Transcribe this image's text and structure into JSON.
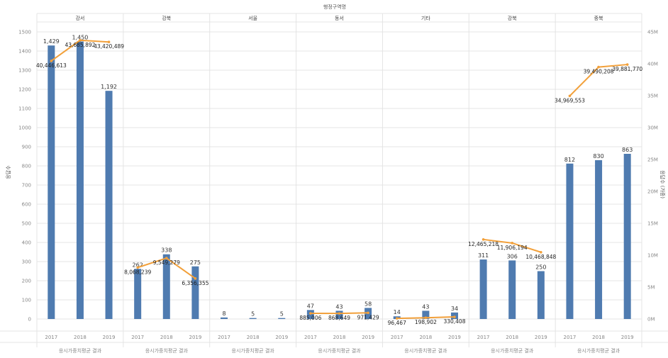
{
  "chart_data": {
    "type": "bar",
    "title": "행정구역명",
    "ylabel": "응답수",
    "y2label": "응답수 (가중)",
    "ylim": [
      0,
      1500
    ],
    "y2lim": [
      0,
      45000000
    ],
    "left_ticks": [
      "1500",
      "1400",
      "1300",
      "1200",
      "1100",
      "1000",
      "900",
      "800",
      "700",
      "600",
      "500",
      "400",
      "300",
      "200",
      "100",
      "0"
    ],
    "right_ticks": [
      "45M",
      "40M",
      "35M",
      "30M",
      "25M",
      "20M",
      "15M",
      "10M",
      "5M",
      "0M"
    ],
    "years": [
      "2017",
      "2018",
      "2019"
    ],
    "facets": [
      {
        "region": "강서",
        "footer": "응시가중치평균 결과",
        "bars": [
          1429,
          1450,
          1192
        ],
        "bar_labels": [
          "1,429",
          "1,450",
          "1,192"
        ],
        "line": [
          40446613,
          43685892,
          43420489
        ],
        "line_labels": [
          "40,446,613",
          "43,685,892",
          "43,420,489"
        ]
      },
      {
        "region": "강북",
        "footer": "응시가중치평균 결과",
        "bars": [
          262,
          338,
          275
        ],
        "bar_labels": [
          "262",
          "338",
          "275"
        ],
        "line": [
          8068239,
          9549279,
          6356355
        ],
        "line_labels": [
          "8,068,239",
          "9,549,279",
          "6,356,355"
        ]
      },
      {
        "region": "서울",
        "footer": "응시가중치평균 결과",
        "bars": [
          8,
          5,
          5
        ],
        "bar_labels": [
          "8",
          "5",
          "5"
        ],
        "line": [],
        "line_labels": []
      },
      {
        "region": "동서",
        "footer": "응시가중치평균 결과",
        "bars": [
          47,
          43,
          58
        ],
        "bar_labels": [
          "47",
          "43",
          "58"
        ],
        "line": [
          885006,
          868649,
          971429
        ],
        "line_labels": [
          "885,006",
          "868,649",
          "971,429"
        ]
      },
      {
        "region": "기타",
        "footer": "응시가중치평균 결과",
        "bars": [
          14,
          43,
          34
        ],
        "bar_labels": [
          "14",
          "43",
          "34"
        ],
        "line": [
          96467,
          198902,
          330408
        ],
        "line_labels": [
          "96,467",
          "198,902",
          "330,408"
        ]
      },
      {
        "region": "강북",
        "footer": "응시가중치평균 결과",
        "bars": [
          311,
          306,
          250
        ],
        "bar_labels": [
          "311",
          "306",
          "250"
        ],
        "line": [
          12465218,
          11906194,
          10468848
        ],
        "line_labels": [
          "12,465,218",
          "11,906,194",
          "10,468,848"
        ]
      },
      {
        "region": "중북",
        "footer": "응시가중치평균 결과",
        "bars": [
          812,
          830,
          863
        ],
        "bar_labels": [
          "812",
          "830",
          "863"
        ],
        "line": [
          34969553,
          39490208,
          39881770
        ],
        "line_labels": [
          "34,969,553",
          "39,490,208",
          "39,881,770"
        ]
      }
    ],
    "colors": {
      "bar": "#4f7bb0",
      "line": "#f2a03a"
    },
    "grid": true,
    "legend": "none"
  }
}
